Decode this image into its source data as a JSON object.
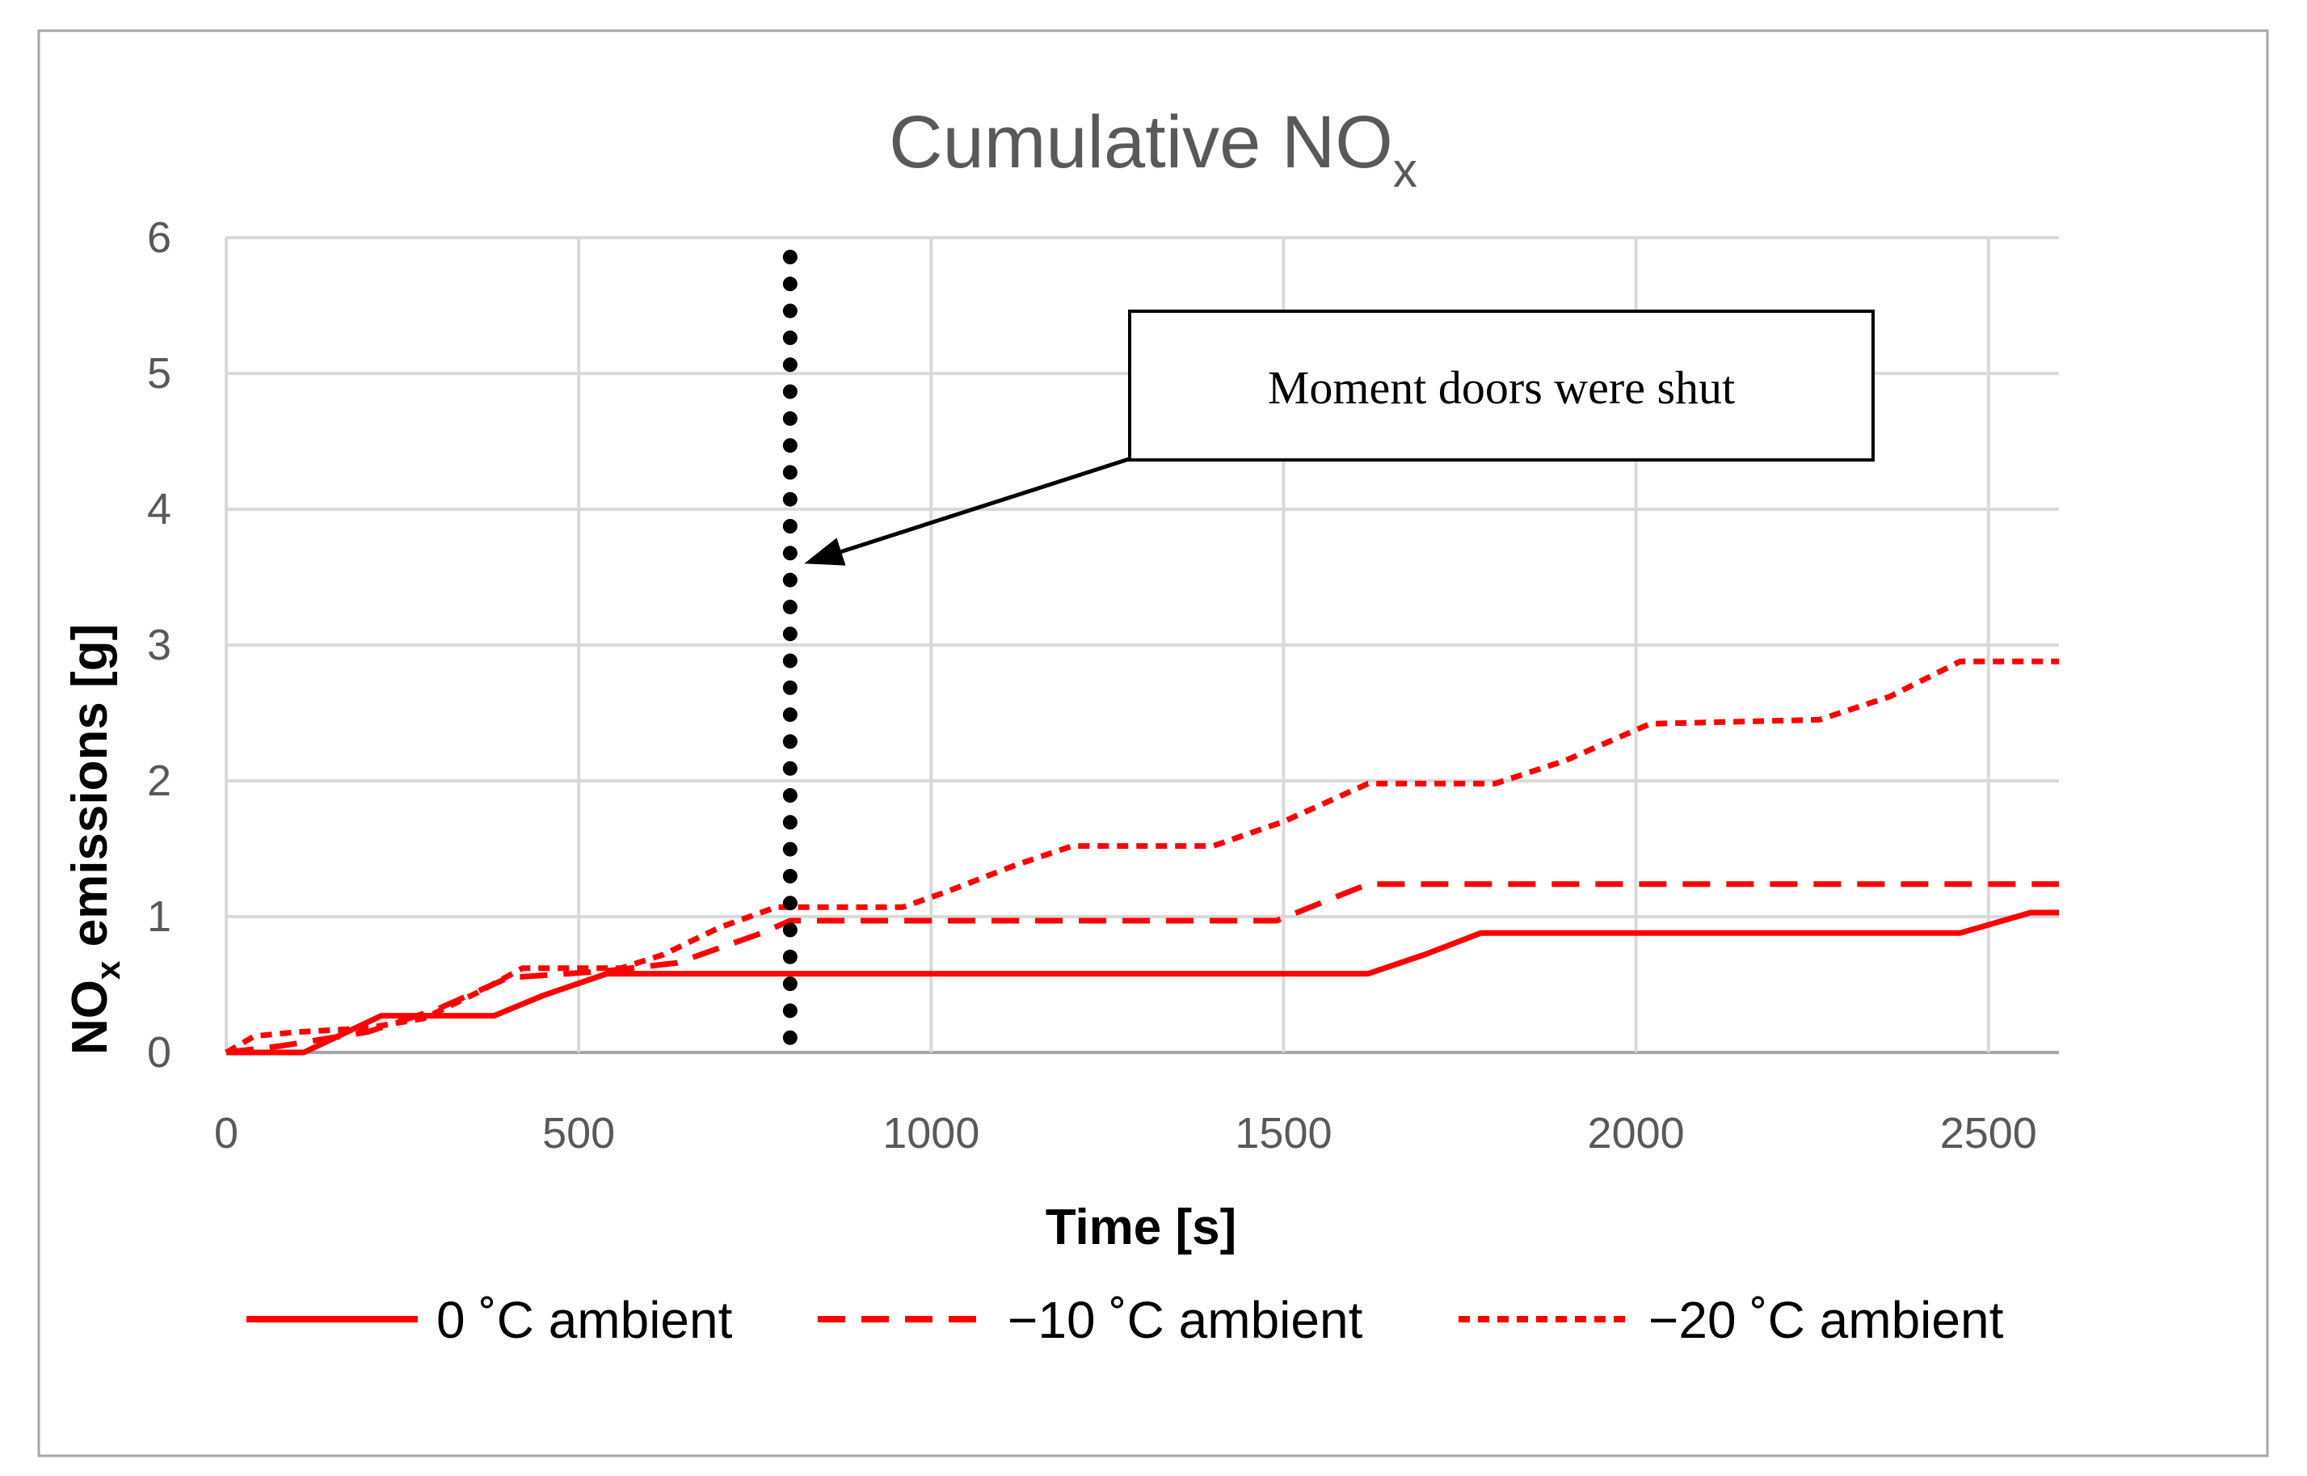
{
  "chart_data": {
    "type": "line",
    "title": "Cumulative NO",
    "title_subscript": "x",
    "xlabel": "Time [s]",
    "ylabel_main": "NO",
    "ylabel_subscript": "x",
    "ylabel_rest": " emissions [g]",
    "xlim": [
      0,
      2600
    ],
    "ylim": [
      0,
      6
    ],
    "xticks": [
      0,
      500,
      1000,
      1500,
      2000,
      2500
    ],
    "yticks": [
      0,
      1,
      2,
      3,
      4,
      5,
      6
    ],
    "grid": true,
    "legend_position": "bottom",
    "colors": {
      "series": "#ff0000",
      "grid": "#d9d9d9",
      "frame": "#a6a6a6",
      "marker_line": "#000000"
    },
    "series": [
      {
        "name": "0 ˚C ambient",
        "dash": "solid",
        "x": [
          0,
          110,
          220,
          380,
          450,
          540,
          1000,
          1620,
          1700,
          1780,
          2000,
          2460,
          2560,
          2600
        ],
        "y": [
          0,
          0,
          0.27,
          0.27,
          0.42,
          0.58,
          0.58,
          0.58,
          0.72,
          0.88,
          0.88,
          0.88,
          1.03,
          1.03
        ]
      },
      {
        "name": "−10 ˚C ambient",
        "dash": "dashed",
        "x": [
          0,
          80,
          200,
          300,
          400,
          540,
          640,
          760,
          800,
          880,
          1000,
          1490,
          1620,
          2000,
          2600
        ],
        "y": [
          0,
          0.05,
          0.15,
          0.32,
          0.55,
          0.6,
          0.66,
          0.88,
          0.97,
          0.97,
          0.97,
          0.97,
          1.24,
          1.24,
          1.24
        ]
      },
      {
        "name": "−20 ˚C ambient",
        "dash": "dotted",
        "x": [
          0,
          40,
          100,
          200,
          280,
          360,
          420,
          560,
          620,
          700,
          780,
          820,
          960,
          1020,
          1120,
          1200,
          1400,
          1500,
          1620,
          1800,
          1900,
          2020,
          2260,
          2360,
          2460,
          2600
        ],
        "y": [
          0,
          0.12,
          0.15,
          0.18,
          0.25,
          0.45,
          0.62,
          0.62,
          0.72,
          0.92,
          1.07,
          1.07,
          1.07,
          1.18,
          1.38,
          1.52,
          1.52,
          1.7,
          1.98,
          1.98,
          2.15,
          2.42,
          2.45,
          2.62,
          2.88,
          2.88
        ]
      }
    ],
    "marker_line": {
      "x": 800
    },
    "annotation": {
      "text": "Moment doors were shut",
      "arrow_target": {
        "x": 820,
        "y": 3.6
      }
    }
  }
}
